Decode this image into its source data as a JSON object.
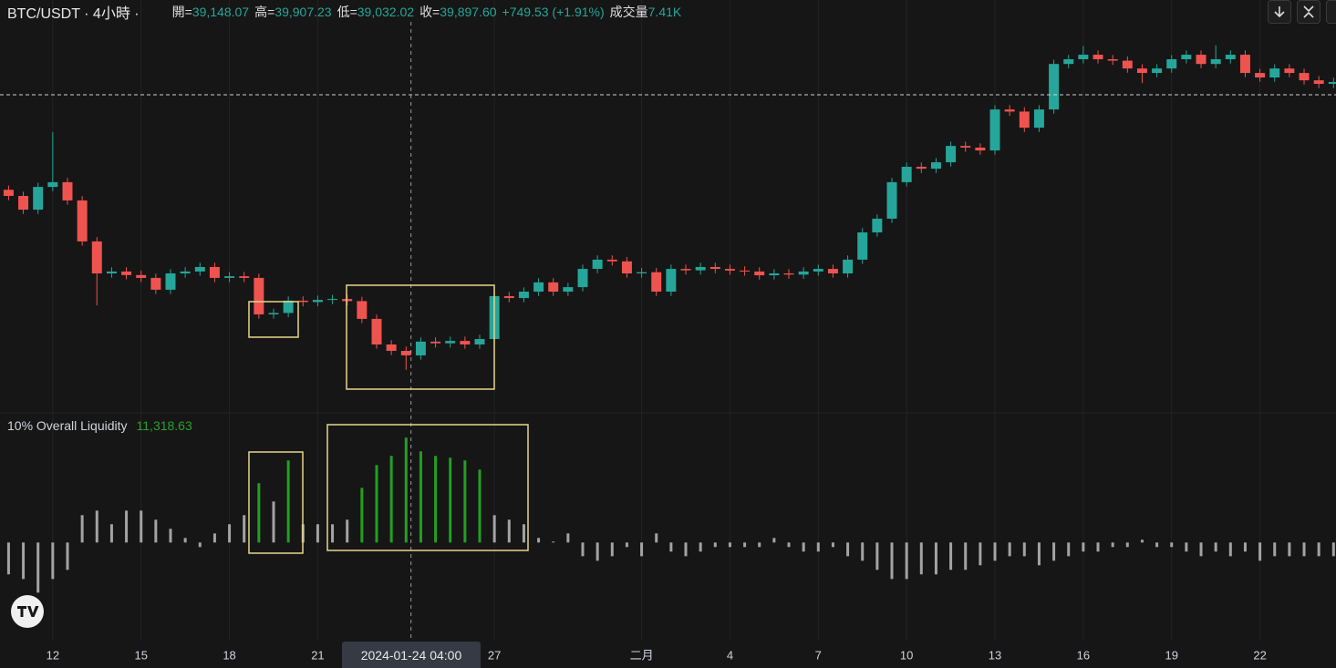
{
  "header": {
    "symbol": "BTC/USDT · 4小時 ·",
    "ohlc": [
      {
        "label": "開=",
        "value": "39,148.07"
      },
      {
        "label": "高=",
        "value": "39,907.23"
      },
      {
        "label": "低=",
        "value": "39,032.02"
      },
      {
        "label": "收=",
        "value": "39,897.60"
      }
    ],
    "change": "+749.53 (+1.91%)",
    "volume_label": "成交量",
    "volume": "7.41K"
  },
  "chart_data": [
    {
      "type": "candlestick",
      "up_color": "#26a69a",
      "down_color": "#ef5350",
      "x": [
        "2024-01-10 12:00",
        "2024-01-11 00:00",
        "2024-01-11 12:00",
        "2024-01-12 00:00",
        "2024-01-12 12:00",
        "2024-01-13 00:00",
        "2024-01-13 12:00",
        "2024-01-14 00:00",
        "2024-01-14 12:00",
        "2024-01-15 00:00",
        "2024-01-15 12:00",
        "2024-01-16 00:00",
        "2024-01-16 12:00",
        "2024-01-17 00:00",
        "2024-01-17 12:00",
        "2024-01-18 00:00",
        "2024-01-18 12:00",
        "2024-01-19 00:00",
        "2024-01-19 12:00",
        "2024-01-20 00:00",
        "2024-01-20 12:00",
        "2024-01-21 00:00",
        "2024-01-21 12:00",
        "2024-01-22 00:00",
        "2024-01-22 12:00",
        "2024-01-23 00:00",
        "2024-01-23 12:00",
        "2024-01-24 00:00",
        "2024-01-24 12:00",
        "2024-01-25 00:00",
        "2024-01-25 12:00",
        "2024-01-26 00:00",
        "2024-01-26 12:00",
        "2024-01-27 00:00",
        "2024-01-27 12:00",
        "2024-01-28 00:00",
        "2024-01-28 12:00",
        "2024-01-29 00:00",
        "2024-01-29 12:00",
        "2024-01-30 00:00",
        "2024-01-30 12:00",
        "2024-01-31 00:00",
        "2024-01-31 12:00",
        "2024-02-01 00:00",
        "2024-02-01 12:00",
        "2024-02-02 00:00",
        "2024-02-02 12:00",
        "2024-02-03 00:00",
        "2024-02-03 12:00",
        "2024-02-04 00:00",
        "2024-02-04 12:00",
        "2024-02-05 00:00",
        "2024-02-05 12:00",
        "2024-02-06 00:00",
        "2024-02-06 12:00",
        "2024-02-07 00:00",
        "2024-02-07 12:00",
        "2024-02-08 00:00",
        "2024-02-08 12:00",
        "2024-02-09 00:00",
        "2024-02-09 12:00",
        "2024-02-10 00:00",
        "2024-02-10 12:00",
        "2024-02-11 00:00",
        "2024-02-11 12:00",
        "2024-02-12 00:00",
        "2024-02-12 12:00",
        "2024-02-13 00:00",
        "2024-02-13 12:00",
        "2024-02-14 00:00",
        "2024-02-14 12:00",
        "2024-02-15 00:00",
        "2024-02-15 12:00",
        "2024-02-16 00:00",
        "2024-02-16 12:00",
        "2024-02-17 00:00",
        "2024-02-17 12:00",
        "2024-02-18 00:00",
        "2024-02-18 12:00",
        "2024-02-19 00:00",
        "2024-02-19 12:00",
        "2024-02-20 00:00",
        "2024-02-20 12:00",
        "2024-02-21 00:00",
        "2024-02-21 12:00",
        "2024-02-22 00:00",
        "2024-02-22 12:00",
        "2024-02-23 00:00",
        "2024-02-23 12:00",
        "2024-02-24 00:00",
        "2024-02-24 12:00"
      ],
      "open": [
        46300,
        46040,
        45460,
        46420,
        46620,
        45850,
        44120,
        42770,
        42850,
        42700,
        42580,
        42080,
        42770,
        42850,
        43040,
        42580,
        42650,
        42580,
        41040,
        41100,
        41620,
        41560,
        41650,
        41690,
        41600,
        40850,
        39770,
        39500,
        39310,
        39890,
        39820,
        39920,
        39770,
        40000,
        41810,
        41730,
        42000,
        42390,
        42000,
        42190,
        42960,
        43350,
        43280,
        42770,
        42820,
        42000,
        42960,
        42900,
        43040,
        42960,
        42890,
        42850,
        42690,
        42770,
        42720,
        42850,
        42960,
        42770,
        43350,
        44500,
        45080,
        46620,
        47270,
        47190,
        47460,
        48150,
        48080,
        47960,
        49690,
        49600,
        48920,
        49690,
        51610,
        51810,
        52000,
        51810,
        51750,
        51420,
        51230,
        51420,
        51810,
        52000,
        51610,
        51810,
        52000,
        51230,
        51040,
        51420,
        51230,
        50920,
        50770
      ],
      "high": [
        46480,
        46220,
        46600,
        48730,
        46800,
        46030,
        44300,
        43030,
        43030,
        42880,
        42760,
        42950,
        43030,
        43220,
        43220,
        42830,
        42830,
        42760,
        41280,
        41800,
        41800,
        41830,
        41870,
        41870,
        41780,
        41030,
        39950,
        39680,
        40070,
        40070,
        40100,
        40100,
        40180,
        41990,
        41990,
        42180,
        42570,
        42570,
        42370,
        43140,
        43530,
        43530,
        43460,
        43000,
        43000,
        43140,
        43140,
        43220,
        43220,
        43140,
        43070,
        43030,
        42950,
        42950,
        43030,
        43140,
        43140,
        43530,
        44680,
        45260,
        46800,
        47450,
        47450,
        47640,
        48330,
        48330,
        48260,
        49870,
        49870,
        49780,
        49870,
        51790,
        51990,
        52370,
        52180,
        51990,
        51930,
        51600,
        51600,
        51990,
        52180,
        52180,
        52400,
        52180,
        52180,
        51410,
        51600,
        51600,
        51410,
        51100,
        51030
      ],
      "low": [
        45860,
        45280,
        45280,
        46240,
        45670,
        43940,
        41420,
        42590,
        42520,
        42400,
        41900,
        41900,
        42590,
        42670,
        42400,
        42400,
        42400,
        40860,
        40860,
        40920,
        41380,
        41380,
        41470,
        41420,
        40670,
        39590,
        39320,
        38700,
        39130,
        39640,
        39640,
        39590,
        39590,
        39820,
        41550,
        41550,
        41820,
        41820,
        41820,
        42010,
        42780,
        43100,
        42590,
        42590,
        41820,
        41820,
        42720,
        42720,
        42780,
        42710,
        42670,
        42510,
        42510,
        42540,
        42540,
        42670,
        42590,
        42590,
        43170,
        44320,
        44900,
        46440,
        47010,
        47010,
        47280,
        47900,
        47780,
        47780,
        49420,
        48740,
        48740,
        49510,
        51430,
        51630,
        51630,
        51570,
        51240,
        50800,
        51050,
        51240,
        51630,
        51430,
        51430,
        51630,
        51050,
        50860,
        50860,
        51050,
        50740,
        50590,
        50590
      ],
      "close": [
        46040,
        45460,
        46420,
        46620,
        45850,
        44120,
        42770,
        42850,
        42700,
        42580,
        42080,
        42770,
        42850,
        43040,
        42580,
        42650,
        42580,
        41040,
        41100,
        41620,
        41560,
        41650,
        41690,
        41600,
        40850,
        39770,
        39500,
        39310,
        39890,
        39820,
        39920,
        39770,
        40000,
        41810,
        41730,
        42000,
        42390,
        42000,
        42190,
        42960,
        43350,
        43280,
        42770,
        42820,
        42000,
        42960,
        42900,
        43040,
        42960,
        42890,
        42850,
        42690,
        42770,
        42720,
        42850,
        42960,
        42770,
        43350,
        44500,
        45080,
        46620,
        47270,
        47190,
        47460,
        48150,
        48080,
        47960,
        49690,
        49600,
        48920,
        49690,
        51610,
        51810,
        52000,
        51810,
        51750,
        51420,
        51230,
        51420,
        51810,
        52000,
        51610,
        51810,
        52000,
        51230,
        51040,
        51420,
        51230,
        50920,
        50770,
        50850
      ],
      "ylim": [
        37000,
        54310
      ],
      "xlim": [
        "2024-01-10 05:00",
        "2024-02-24 14:00"
      ],
      "xticks": [
        {
          "value": "2024-01-12 00:00",
          "label": "12"
        },
        {
          "value": "2024-01-15 00:00",
          "label": "15"
        },
        {
          "value": "2024-01-18 00:00",
          "label": "18"
        },
        {
          "value": "2024-01-21 00:00",
          "label": "21"
        },
        {
          "value": "2024-01-27 00:00",
          "label": "27"
        },
        {
          "value": "2024-02-01 00:00",
          "label": "二月"
        },
        {
          "value": "2024-02-04 00:00",
          "label": "4"
        },
        {
          "value": "2024-02-07 00:00",
          "label": "7"
        },
        {
          "value": "2024-02-10 00:00",
          "label": "10"
        },
        {
          "value": "2024-02-13 00:00",
          "label": "13"
        },
        {
          "value": "2024-02-16 00:00",
          "label": "16"
        },
        {
          "value": "2024-02-19 00:00",
          "label": "19"
        },
        {
          "value": "2024-02-22 00:00",
          "label": "22"
        }
      ],
      "crosshair_x": "2024-01-24 04:00",
      "price_line": 50310,
      "grid": true
    },
    {
      "type": "bar",
      "title": "10% Overall Liquidity",
      "value_label": "11,318.63",
      "ylim": [
        -10300,
        13800
      ],
      "series": [
        {
          "color": "#a3a3a3",
          "values": [
            -3440,
            -3940,
            -5410,
            -3940,
            -2950,
            2950,
            3440,
            1970,
            3440,
            3440,
            2460,
            1480,
            490,
            -490,
            980,
            1970,
            2950,
            null,
            4430,
            null,
            1970,
            1970,
            1970,
            2460,
            null,
            null,
            null,
            null,
            null,
            null,
            null,
            null,
            null,
            2950,
            2460,
            1970,
            490,
            100,
            980,
            -1480,
            -1970,
            -1480,
            -490,
            -1480,
            980,
            -980,
            -1480,
            -980,
            -490,
            -490,
            -490,
            -490,
            490,
            -490,
            -980,
            -980,
            -490,
            -1480,
            -1970,
            -2950,
            -3940,
            -3940,
            -3440,
            -3440,
            -2950,
            -2950,
            -2460,
            -1970,
            -1480,
            -1480,
            -2460,
            -1970,
            -1480,
            -980,
            -980,
            -490,
            -490,
            300,
            -490,
            -490,
            -980,
            -1480,
            -980,
            -1480,
            -980,
            -1970,
            -1480,
            -1480,
            -1480,
            -1480,
            -1480
          ]
        },
        {
          "color": "#22a022",
          "values": [
            null,
            null,
            null,
            null,
            null,
            null,
            null,
            null,
            null,
            null,
            null,
            null,
            null,
            null,
            null,
            null,
            null,
            6400,
            null,
            8860,
            null,
            null,
            null,
            null,
            5900,
            8360,
            9350,
            11318.63,
            9840,
            9350,
            9150,
            8860,
            7870,
            null,
            null,
            null,
            null,
            null,
            null,
            null,
            null,
            null,
            null,
            null,
            null,
            null,
            null,
            null,
            null,
            null,
            null,
            null,
            null,
            null,
            null,
            null,
            null,
            null,
            null,
            null,
            null,
            null,
            null,
            null,
            null,
            null,
            null,
            null,
            null,
            null,
            null,
            null,
            null,
            null,
            null,
            null,
            null,
            null,
            null,
            null,
            null,
            null,
            null,
            null,
            null,
            null,
            null,
            null,
            null,
            null,
            null
          ]
        }
      ]
    }
  ]
}
